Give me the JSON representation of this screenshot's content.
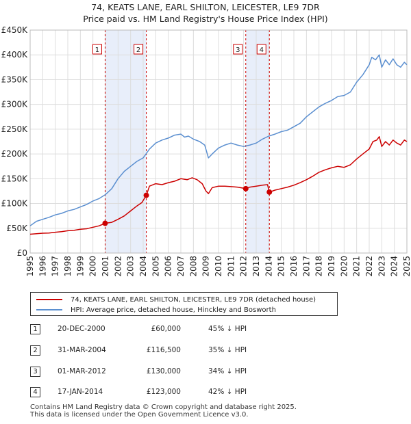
{
  "title": "74, KEATS LANE, EARL SHILTON, LEICESTER, LE9 7DR",
  "subtitle": "Price paid vs. HM Land Registry's House Price Index (HPI)",
  "colors": {
    "price_line": "#cc0000",
    "hpi_line": "#5b8fd0",
    "shade": "#e8eefa",
    "marker_box": "#cc0000",
    "grid": "#dddddd"
  },
  "chart_data": {
    "type": "line",
    "title": "74, KEATS LANE, EARL SHILTON, LEICESTER, LE9 7DR",
    "subtitle": "Price paid vs. HM Land Registry's House Price Index (HPI)",
    "xlim": [
      1995,
      2025
    ],
    "ylim": [
      0,
      450000
    ],
    "xticks": [
      1995,
      1996,
      1997,
      1998,
      1999,
      2000,
      2001,
      2002,
      2003,
      2004,
      2005,
      2006,
      2007,
      2008,
      2009,
      2010,
      2011,
      2012,
      2013,
      2014,
      2015,
      2016,
      2017,
      2018,
      2019,
      2020,
      2021,
      2022,
      2023,
      2024,
      2025
    ],
    "xtick_labels": [
      "1995",
      "1996",
      "1997",
      "1998",
      "1999",
      "2000",
      "2001",
      "2002",
      "2003",
      "2004",
      "2005",
      "2006",
      "2007",
      "2008",
      "2009",
      "2010",
      "2011",
      "2012",
      "2013",
      "2014",
      "2015",
      "2016",
      "2017",
      "2018",
      "2019",
      "2020",
      "2021",
      "2022",
      "2023",
      "2024",
      "2025"
    ],
    "yticks": [
      0,
      50000,
      100000,
      150000,
      200000,
      250000,
      300000,
      350000,
      400000,
      450000
    ],
    "ytick_labels": [
      "£0",
      "£50K",
      "£100K",
      "£150K",
      "£200K",
      "£250K",
      "£300K",
      "£350K",
      "£400K",
      "£450K"
    ],
    "grid": true,
    "series": [
      {
        "name": "74, KEATS LANE, EARL SHILTON, LEICESTER, LE9 7DR (detached house)",
        "color": "#cc0000",
        "x": [
          1995.0,
          1995.5,
          1996.0,
          1996.5,
          1997.0,
          1997.5,
          1998.0,
          1998.5,
          1999.0,
          1999.5,
          2000.0,
          2000.5,
          2000.97,
          2001.5,
          2002.0,
          2002.5,
          2003.0,
          2003.5,
          2003.9,
          2004.25,
          2004.5,
          2005.0,
          2005.5,
          2006.0,
          2006.5,
          2007.0,
          2007.5,
          2007.9,
          2008.3,
          2008.7,
          2009.0,
          2009.2,
          2009.5,
          2010.0,
          2010.5,
          2011.0,
          2011.5,
          2012.17,
          2012.5,
          2013.0,
          2013.5,
          2013.9,
          2014.05,
          2014.5,
          2015.0,
          2015.5,
          2016.0,
          2016.5,
          2017.0,
          2017.5,
          2018.0,
          2018.5,
          2019.0,
          2019.5,
          2020.0,
          2020.5,
          2021.0,
          2021.5,
          2022.0,
          2022.3,
          2022.6,
          2022.8,
          2023.0,
          2023.3,
          2023.6,
          2023.9,
          2024.2,
          2024.5,
          2024.8,
          2025.0
        ],
        "y": [
          38000,
          39000,
          40000,
          40500,
          42000,
          43000,
          45000,
          46000,
          48000,
          49000,
          52000,
          55000,
          60000,
          62000,
          68000,
          75000,
          85000,
          95000,
          102000,
          116500,
          135000,
          140000,
          138000,
          142000,
          145000,
          150000,
          148000,
          152000,
          148000,
          140000,
          125000,
          120000,
          132000,
          135000,
          135000,
          134000,
          133000,
          130000,
          133000,
          135000,
          137000,
          138000,
          123000,
          127000,
          130000,
          133000,
          137000,
          142000,
          148000,
          155000,
          163000,
          168000,
          172000,
          175000,
          173000,
          178000,
          190000,
          200000,
          210000,
          225000,
          228000,
          235000,
          215000,
          225000,
          218000,
          228000,
          222000,
          218000,
          228000,
          225000
        ]
      },
      {
        "name": "HPI: Average price, detached house, Hinckley and Bosworth",
        "color": "#5b8fd0",
        "x": [
          1995.0,
          1995.5,
          1996.0,
          1996.5,
          1997.0,
          1997.5,
          1998.0,
          1998.5,
          1999.0,
          1999.5,
          2000.0,
          2000.5,
          2001.0,
          2001.5,
          2002.0,
          2002.5,
          2003.0,
          2003.5,
          2004.0,
          2004.5,
          2005.0,
          2005.5,
          2006.0,
          2006.5,
          2007.0,
          2007.3,
          2007.6,
          2008.0,
          2008.5,
          2008.9,
          2009.2,
          2009.5,
          2010.0,
          2010.5,
          2011.0,
          2011.5,
          2012.0,
          2012.5,
          2013.0,
          2013.5,
          2014.0,
          2014.5,
          2015.0,
          2015.5,
          2016.0,
          2016.5,
          2017.0,
          2017.5,
          2018.0,
          2018.5,
          2019.0,
          2019.5,
          2020.0,
          2020.5,
          2021.0,
          2021.5,
          2022.0,
          2022.2,
          2022.5,
          2022.8,
          2023.0,
          2023.3,
          2023.6,
          2023.9,
          2024.2,
          2024.5,
          2024.8,
          2025.0
        ],
        "y": [
          55000,
          64000,
          68000,
          72000,
          77000,
          80000,
          85000,
          88000,
          93000,
          98000,
          105000,
          110000,
          118000,
          130000,
          150000,
          165000,
          175000,
          185000,
          192000,
          210000,
          222000,
          228000,
          232000,
          238000,
          240000,
          234000,
          236000,
          230000,
          225000,
          218000,
          192000,
          200000,
          212000,
          218000,
          222000,
          218000,
          215000,
          218000,
          222000,
          230000,
          236000,
          240000,
          245000,
          248000,
          255000,
          262000,
          275000,
          285000,
          295000,
          302000,
          308000,
          316000,
          318000,
          325000,
          345000,
          360000,
          380000,
          395000,
          390000,
          400000,
          375000,
          390000,
          380000,
          392000,
          380000,
          375000,
          385000,
          380000
        ]
      }
    ],
    "shaded_regions": [
      {
        "from": 2000.97,
        "to": 2004.25
      },
      {
        "from": 2012.17,
        "to": 2014.05
      }
    ],
    "annotations": [
      {
        "label": "1",
        "x": 2000.97,
        "y": 60000
      },
      {
        "label": "2",
        "x": 2004.25,
        "y": 116500
      },
      {
        "label": "3",
        "x": 2012.17,
        "y": 130000
      },
      {
        "label": "4",
        "x": 2014.05,
        "y": 123000
      }
    ]
  },
  "legend": {
    "price_label": "74, KEATS LANE, EARL SHILTON, LEICESTER, LE9 7DR (detached house)",
    "hpi_label": "HPI: Average price, detached house, Hinckley and Bosworth"
  },
  "transactions": [
    {
      "num": "1",
      "date": "20-DEC-2000",
      "price": "£60,000",
      "hpi": "45% ↓ HPI"
    },
    {
      "num": "2",
      "date": "31-MAR-2004",
      "price": "£116,500",
      "hpi": "35% ↓ HPI"
    },
    {
      "num": "3",
      "date": "01-MAR-2012",
      "price": "£130,000",
      "hpi": "34% ↓ HPI"
    },
    {
      "num": "4",
      "date": "17-JAN-2014",
      "price": "£123,000",
      "hpi": "42% ↓ HPI"
    }
  ],
  "footer": {
    "line1": "Contains HM Land Registry data © Crown copyright and database right 2025.",
    "line2": "This data is licensed under the Open Government Licence v3.0."
  }
}
